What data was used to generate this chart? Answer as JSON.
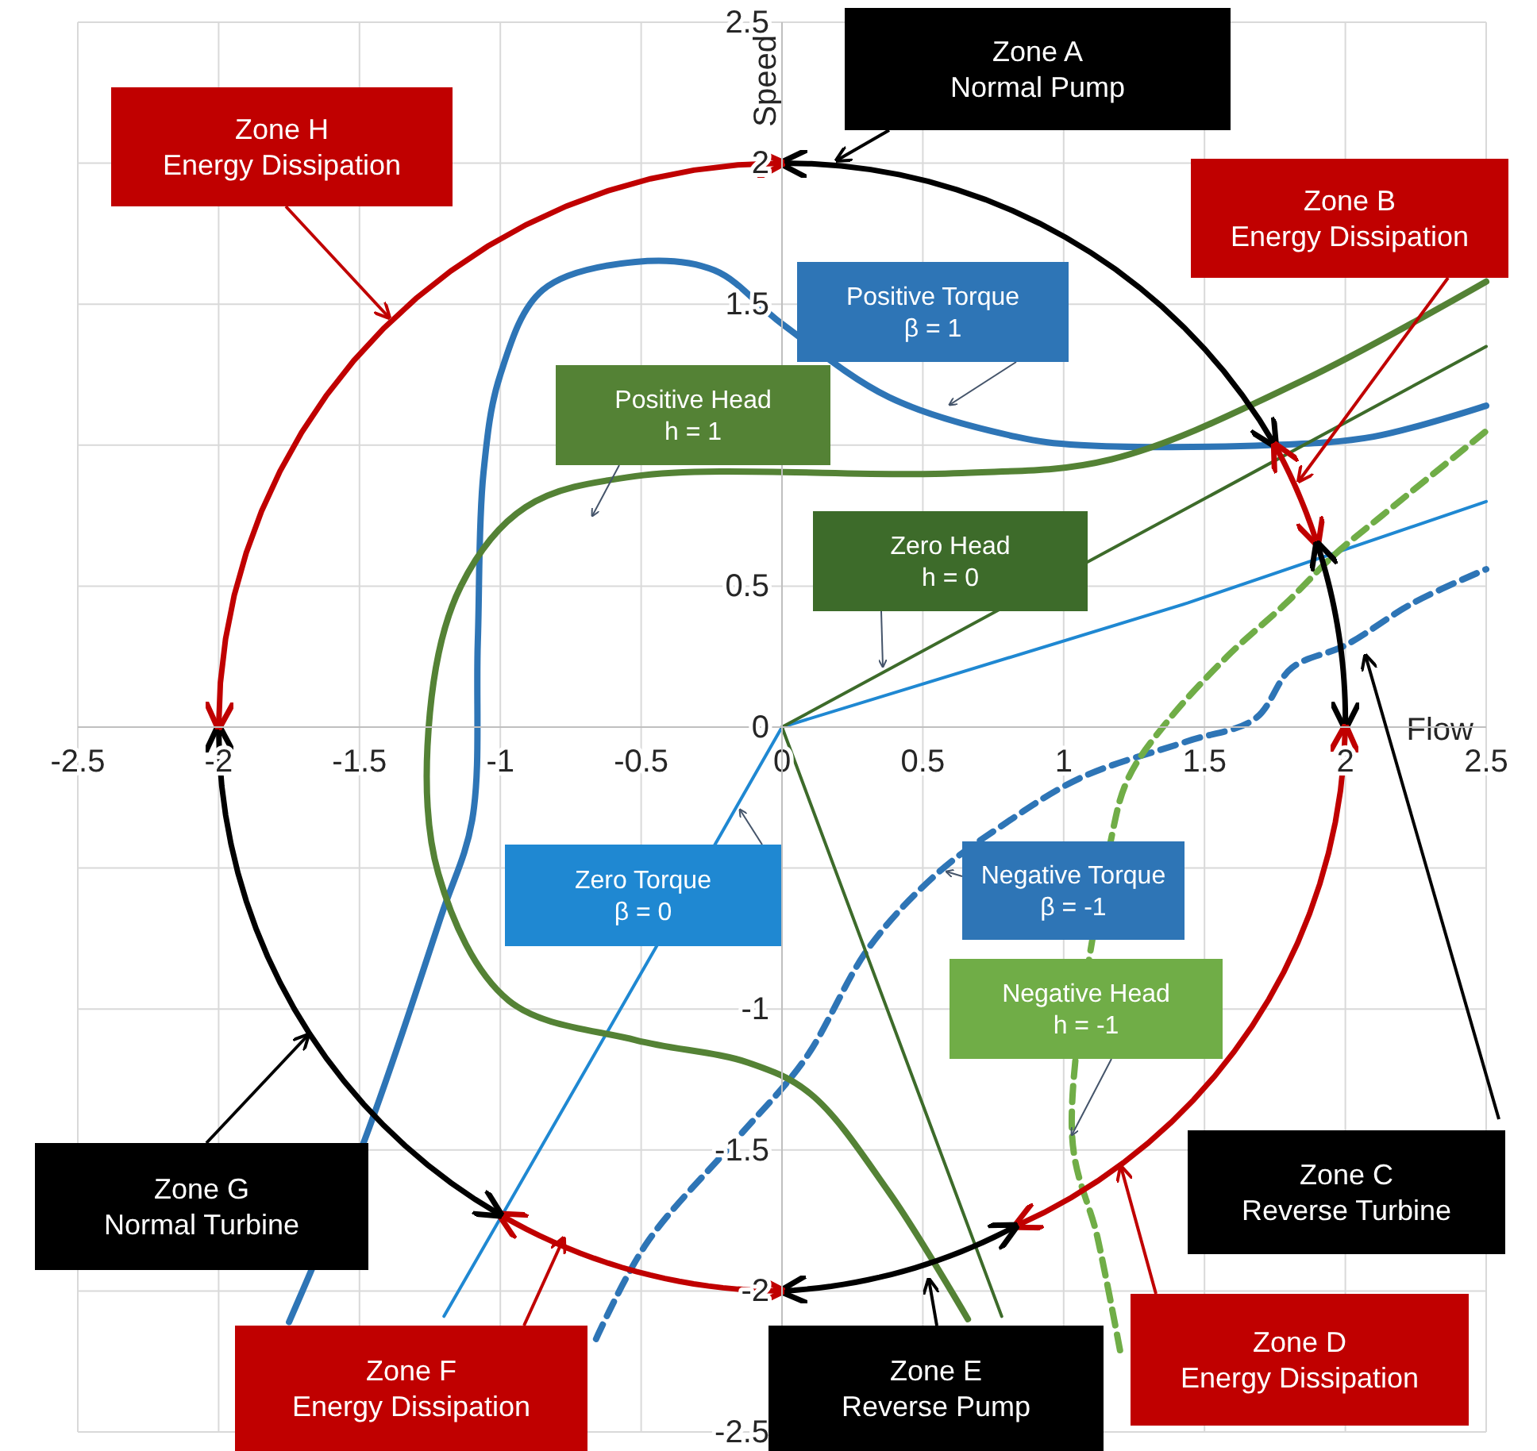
{
  "chart_data": {
    "type": "line",
    "xlabel": "Flow",
    "ylabel": "Speed",
    "xlim": [
      -2.5,
      2.5
    ],
    "ylim": [
      -2.5,
      2.5
    ],
    "xticks": [
      -2.5,
      -2,
      -1.5,
      -1,
      -0.5,
      0,
      0.5,
      1,
      1.5,
      2,
      2.5
    ],
    "yticks": [
      -2.5,
      -2,
      -1.5,
      -1,
      {
        "value": -0.5,
        "label": null
      },
      0,
      0.5,
      {
        "value": 1,
        "label": null
      },
      1.5,
      2,
      2.5
    ],
    "grid": true,
    "marker": "none",
    "series": [
      {
        "name": "Positive Torque\nβ = 1",
        "color": "#2e75b6",
        "line_style": "solid",
        "x": [
          -1.75,
          -1.48,
          -1.21,
          -1.1,
          -1.08,
          -1.06,
          -1.0,
          -0.85,
          -0.52,
          -0.24,
          0,
          0.38,
          0.83,
          1.06,
          1.73,
          2.1,
          2.5
        ],
        "values": [
          -2.11,
          -1.46,
          -0.67,
          -0.33,
          0.3,
          0.9,
          1.25,
          1.55,
          1.65,
          1.62,
          1.43,
          1.17,
          1.03,
          1.0,
          1.0,
          1.03,
          1.14
        ]
      },
      {
        "name": "Zero Torque\nβ = 0",
        "color": "#1f88d2",
        "line_style": "solid",
        "x": [
          -1.2,
          -0.24,
          0,
          1.44,
          2.5
        ],
        "values": [
          -2.09,
          -0.42,
          0,
          0.44,
          0.8
        ]
      },
      {
        "name": "Negative Torque\nβ = -1",
        "color": "#2e75b6",
        "line_style": "dashed",
        "x": [
          -0.66,
          -0.48,
          -0.16,
          0.08,
          0.31,
          0.55,
          0.78,
          1.06,
          1.44,
          1.68,
          1.81,
          2.0,
          2.24,
          2.5
        ],
        "values": [
          -2.17,
          -1.83,
          -1.46,
          -1.18,
          -0.78,
          -0.52,
          -0.35,
          -0.18,
          -0.05,
          0.03,
          0.21,
          0.29,
          0.44,
          0.56
        ]
      },
      {
        "name": "Positive Head\nh = 1",
        "color": "#548235",
        "line_style": "solid",
        "x": [
          0.66,
          0.38,
          0.1,
          -0.12,
          -0.52,
          -0.97,
          -1.22,
          -1.25,
          -1.14,
          -0.91,
          -0.52,
          0.61,
          1.17,
          1.85,
          2.5
        ],
        "values": [
          -2.1,
          -1.65,
          -1.3,
          -1.19,
          -1.11,
          -0.97,
          -0.52,
          0.05,
          0.5,
          0.78,
          0.89,
          0.9,
          0.95,
          1.23,
          1.58
        ]
      },
      {
        "name": "Zero Head\nh = 0",
        "color": "#3d6b2a",
        "line_style": "solid",
        "x": [
          0.78,
          0,
          2.5
        ],
        "values": [
          -2.09,
          0,
          1.35
        ]
      },
      {
        "name": "Negative Head\nh = -1",
        "color": "#70ad47",
        "line_style": "dashed",
        "x": [
          1.2,
          1.12,
          1.03,
          1.06,
          1.17,
          1.23,
          1.36,
          1.58,
          1.79,
          1.96,
          2.13,
          2.5
        ],
        "values": [
          -2.21,
          -1.81,
          -1.45,
          null,
          -0.39,
          -0.18,
          0.01,
          0.25,
          0.44,
          0.61,
          0.75,
          1.05
        ]
      }
    ],
    "annotations": [
      "Zone A\nNormal Pump",
      "Zone B\nEnergy Dissipation",
      "Zone C\nReverse Turbine",
      "Zone D\nEnergy Dissipation",
      "Zone E\nReverse Pump",
      "Zone F\nEnergy Dissipation",
      "Zone G\nNormal Turbine",
      "Zone H\nEnergy Dissipation"
    ]
  }
}
